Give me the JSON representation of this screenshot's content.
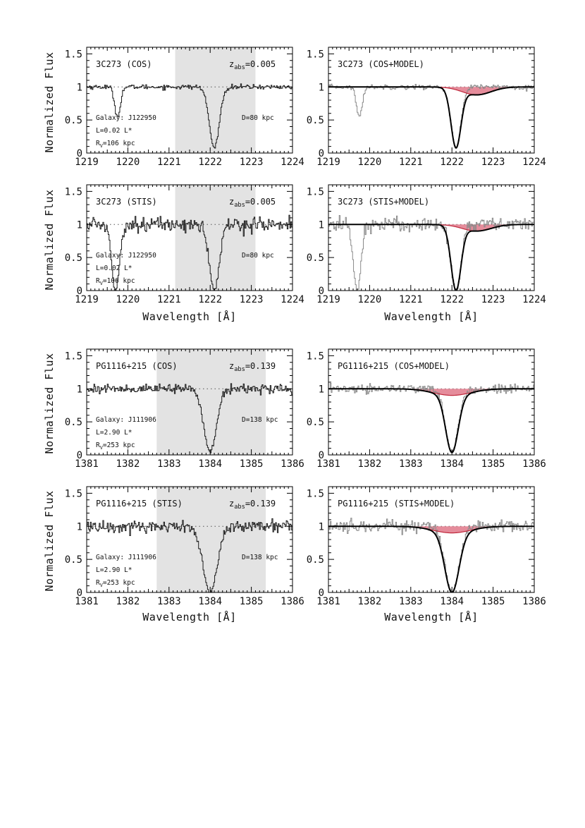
{
  "figure": {
    "ylabel": "Normalized Flux",
    "xlabel": "Wavelength [Å]"
  },
  "chart_data": [
    {
      "type": "line",
      "id": "p1",
      "label": "3C273 (COS)",
      "zabs": {
        "prefix": "z",
        "sub": "abs",
        "value": "=0.005"
      },
      "galaxy": [
        "Galaxy: J122950",
        "L=0.02 L*"
      ],
      "rv": {
        "prefix": "R",
        "sub": "V",
        "value": "=106 kpc"
      },
      "distance": "D=80 kpc",
      "xlim": [
        1219,
        1224
      ],
      "ylim": [
        0,
        1.6
      ],
      "xticks": [
        "1219",
        "1220",
        "1221",
        "1222",
        "1223",
        "1224"
      ],
      "yticks": [
        "0",
        "0.5",
        "1",
        "1.5"
      ],
      "shade": [
        1221.15,
        1223.1
      ],
      "lines": [
        {
          "center": 1219.75,
          "sigma": 0.07,
          "depth": 0.45
        },
        {
          "center": 1222.1,
          "sigma": 0.12,
          "depth": 0.92
        }
      ],
      "noise": 0.018,
      "data_color": "#1a1a1a",
      "model": null
    },
    {
      "type": "line",
      "id": "p2",
      "label": "3C273 (COS+MODEL)",
      "xlim": [
        1219,
        1224
      ],
      "ylim": [
        0,
        1.6
      ],
      "xticks": [
        "1219",
        "1220",
        "1221",
        "1222",
        "1223",
        "1224"
      ],
      "yticks": [
        "0",
        "0.5",
        "1",
        "1.5"
      ],
      "lines": [
        {
          "center": 1219.75,
          "sigma": 0.07,
          "depth": 0.45
        },
        {
          "center": 1222.1,
          "sigma": 0.12,
          "depth": 0.92
        }
      ],
      "noise": 0.018,
      "data_color": "#8a8a8a",
      "model": {
        "narrow": {
          "center": 1222.1,
          "sigma": 0.12,
          "depth": 0.92
        },
        "broad": {
          "center": 1222.6,
          "sigma": 0.35,
          "depth": 0.12
        },
        "fill": "#e0788a",
        "edge": "#c0283c"
      }
    },
    {
      "type": "line",
      "id": "p3",
      "label": "3C273 (STIS)",
      "zabs": {
        "prefix": "z",
        "sub": "abs",
        "value": "=0.005"
      },
      "galaxy": [
        "Galaxy: J122950",
        "L=0.02 L*"
      ],
      "rv": {
        "prefix": "R",
        "sub": "V",
        "value": "=106 kpc"
      },
      "distance": "D=80 kpc",
      "xlim": [
        1219,
        1224
      ],
      "ylim": [
        0,
        1.6
      ],
      "xticks": [
        "1219",
        "1220",
        "1221",
        "1222",
        "1223",
        "1224"
      ],
      "yticks": [
        "0",
        "0.5",
        "1",
        "1.5"
      ],
      "shade": [
        1221.15,
        1223.1
      ],
      "lines": [
        {
          "center": 1219.7,
          "sigma": 0.09,
          "depth": 1.0
        },
        {
          "center": 1222.1,
          "sigma": 0.12,
          "depth": 1.0
        }
      ],
      "noise": 0.055,
      "data_color": "#1a1a1a",
      "model": null
    },
    {
      "type": "line",
      "id": "p4",
      "label": "3C273 (STIS+MODEL)",
      "xlim": [
        1219,
        1224
      ],
      "ylim": [
        0,
        1.6
      ],
      "xticks": [
        "1219",
        "1220",
        "1221",
        "1222",
        "1223",
        "1224"
      ],
      "yticks": [
        "0",
        "0.5",
        "1",
        "1.5"
      ],
      "lines": [
        {
          "center": 1219.7,
          "sigma": 0.09,
          "depth": 1.0
        },
        {
          "center": 1222.1,
          "sigma": 0.12,
          "depth": 1.0
        }
      ],
      "noise": 0.055,
      "data_color": "#8a8a8a",
      "model": {
        "narrow": {
          "center": 1222.1,
          "sigma": 0.12,
          "depth": 1.0
        },
        "broad": {
          "center": 1222.6,
          "sigma": 0.35,
          "depth": 0.1
        },
        "fill": "#e0788a",
        "edge": "#c0283c"
      }
    },
    {
      "type": "line",
      "id": "p5",
      "label": "PG1116+215 (COS)",
      "zabs": {
        "prefix": "z",
        "sub": "abs",
        "value": "=0.139"
      },
      "galaxy": [
        "Galaxy: J111906",
        "L=2.90 L*"
      ],
      "rv": {
        "prefix": "R",
        "sub": "V",
        "value": "=253 kpc"
      },
      "distance": "D=138 kpc",
      "xlim": [
        1381,
        1386
      ],
      "ylim": [
        0,
        1.6
      ],
      "xticks": [
        "1381",
        "1382",
        "1383",
        "1384",
        "1385",
        "1386"
      ],
      "yticks": [
        "0",
        "0.5",
        "1",
        "1.5"
      ],
      "shade": [
        1382.7,
        1385.35
      ],
      "lines": [
        {
          "center": 1384.0,
          "sigma": 0.15,
          "depth": 0.96
        }
      ],
      "noise": 0.035,
      "data_color": "#1a1a1a",
      "model": null
    },
    {
      "type": "line",
      "id": "p6",
      "label": "PG1116+215 (COS+MODEL)",
      "xlim": [
        1381,
        1386
      ],
      "ylim": [
        0,
        1.6
      ],
      "xticks": [
        "1381",
        "1382",
        "1383",
        "1384",
        "1385",
        "1386"
      ],
      "yticks": [
        "0",
        "0.5",
        "1",
        "1.5"
      ],
      "lines": [
        {
          "center": 1384.0,
          "sigma": 0.15,
          "depth": 0.96
        }
      ],
      "noise": 0.035,
      "data_color": "#8a8a8a",
      "model": {
        "narrow": {
          "center": 1384.0,
          "sigma": 0.15,
          "depth": 0.96
        },
        "broad": {
          "center": 1384.0,
          "sigma": 0.45,
          "depth": 0.1
        },
        "fill": "#e0788a",
        "edge": "#c0283c"
      }
    },
    {
      "type": "line",
      "id": "p7",
      "label": "PG1116+215 (STIS)",
      "zabs": {
        "prefix": "z",
        "sub": "abs",
        "value": "=0.139"
      },
      "galaxy": [
        "Galaxy: J111906",
        "L=2.90 L*"
      ],
      "rv": {
        "prefix": "R",
        "sub": "V",
        "value": "=253 kpc"
      },
      "distance": "D=138 kpc",
      "xlim": [
        1381,
        1386
      ],
      "ylim": [
        0,
        1.6
      ],
      "xticks": [
        "1381",
        "1382",
        "1383",
        "1384",
        "1385",
        "1386"
      ],
      "yticks": [
        "0",
        "0.5",
        "1",
        "1.5"
      ],
      "shade": [
        1382.7,
        1385.35
      ],
      "lines": [
        {
          "center": 1384.0,
          "sigma": 0.17,
          "depth": 1.0
        }
      ],
      "noise": 0.05,
      "data_color": "#1a1a1a",
      "model": null
    },
    {
      "type": "line",
      "id": "p8",
      "label": "PG1116+215 (STIS+MODEL)",
      "xlim": [
        1381,
        1386
      ],
      "ylim": [
        0,
        1.6
      ],
      "xticks": [
        "1381",
        "1382",
        "1383",
        "1384",
        "1385",
        "1386"
      ],
      "yticks": [
        "0",
        "0.5",
        "1",
        "1.5"
      ],
      "lines": [
        {
          "center": 1384.0,
          "sigma": 0.17,
          "depth": 1.0
        }
      ],
      "noise": 0.05,
      "data_color": "#8a8a8a",
      "model": {
        "narrow": {
          "center": 1384.0,
          "sigma": 0.17,
          "depth": 1.0
        },
        "broad": {
          "center": 1384.0,
          "sigma": 0.45,
          "depth": 0.1
        },
        "fill": "#e0788a",
        "edge": "#c0283c"
      }
    }
  ]
}
